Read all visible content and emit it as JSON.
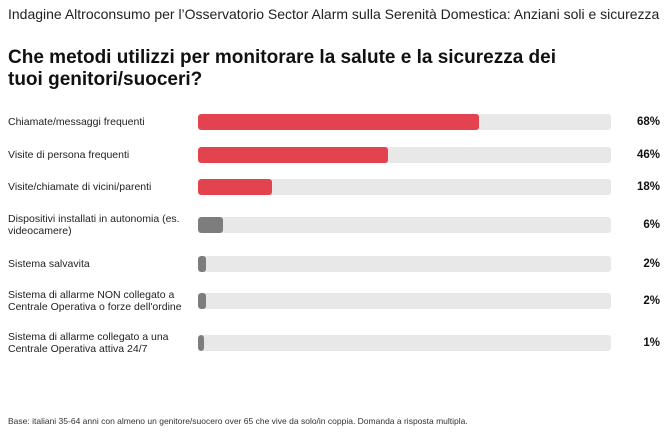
{
  "header": {
    "subtitle": "Indagine Altroconsumo per l’Osservatorio Sector Alarm sulla Serenità Domestica: Anziani soli e sicurezza",
    "title": "Che metodi utilizzi per monitorare la salute e la sicurezza dei tuoi genitori/suoceri?"
  },
  "footnote": "Base: italiani 35-64 anni con almeno un genitore/suocero over 65 che vive da solo/in coppia. Domanda a risposta multipla.",
  "colors": {
    "highlight": "#e2434f",
    "muted": "#7d7d7d",
    "track": "#e8e8e8"
  },
  "chart_data": {
    "type": "bar",
    "orientation": "horizontal",
    "xlim": [
      0,
      100
    ],
    "grid": false,
    "categories": [
      "Chiamate/messaggi frequenti",
      "Visite di persona frequenti",
      "Visite/chiamate di vicini/parenti",
      "Dispositivi installati in autonomia (es. videocamere)",
      "Sistema salvavita",
      "Sistema di allarme NON collegato a Centrale Operativa o forze dell'ordine",
      "Sistema di allarme collegato a una Centrale Operativa attiva 24/7"
    ],
    "values": [
      68,
      46,
      18,
      6,
      2,
      2,
      1
    ],
    "value_labels": [
      "68%",
      "46%",
      "18%",
      "6%",
      "2%",
      "2%",
      "1%"
    ],
    "bar_colors": [
      "highlight",
      "highlight",
      "highlight",
      "muted",
      "muted",
      "muted",
      "muted"
    ]
  }
}
